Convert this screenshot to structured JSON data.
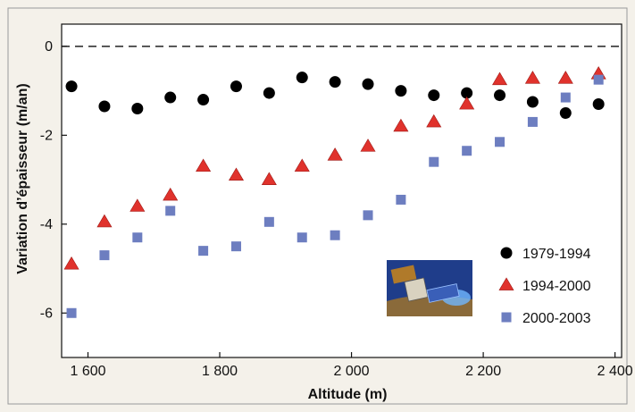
{
  "chart_data": {
    "type": "scatter",
    "xlabel": "Altitude (m)",
    "ylabel": "Variation d’épaisseur (m/an)",
    "xlim": [
      1560,
      2410
    ],
    "ylim": [
      -7,
      0.5
    ],
    "x_ticks": [
      1600,
      1800,
      2000,
      2200,
      2400
    ],
    "x_tick_labels": [
      "1 600",
      "1 800",
      "2 000",
      "2 200",
      "2 400"
    ],
    "y_ticks": [
      0,
      -2,
      -4,
      -6
    ],
    "y_tick_labels": [
      "0",
      "-2",
      "-4",
      "-6"
    ],
    "reference_line": 0,
    "grid": false,
    "legend_position": "bottom-right",
    "x": [
      1575,
      1625,
      1675,
      1725,
      1775,
      1825,
      1875,
      1925,
      1975,
      2025,
      2075,
      2125,
      2175,
      2225,
      2275,
      2325,
      2375
    ],
    "series": [
      {
        "name": "1979-1994",
        "marker": "circle",
        "color": "#000000",
        "values": [
          -0.9,
          -1.35,
          -1.4,
          -1.15,
          -1.2,
          -0.9,
          -1.05,
          -0.7,
          -0.8,
          -0.85,
          -1.0,
          -1.1,
          -1.05,
          -1.1,
          -1.25,
          -1.5,
          -1.3
        ]
      },
      {
        "name": "1994-2000",
        "marker": "triangle",
        "color": "#e0322c",
        "values": [
          -4.9,
          -3.95,
          -3.6,
          -3.35,
          -2.7,
          -2.9,
          -3.0,
          -2.7,
          -2.45,
          -2.25,
          -1.8,
          -1.7,
          -1.3,
          -0.75,
          -0.72,
          -0.72,
          -0.62
        ]
      },
      {
        "name": "2000-2003",
        "marker": "square",
        "color": "#6d7ec0",
        "values": [
          -6.0,
          -4.7,
          -4.3,
          -3.7,
          -4.6,
          -4.5,
          -3.95,
          -4.3,
          -4.25,
          -3.8,
          -3.45,
          -2.6,
          -2.35,
          -2.15,
          -1.7,
          -1.15,
          -0.75
        ]
      }
    ]
  },
  "inset": {
    "icon": "satellite-icon",
    "colors": {
      "sky": "#1f3d8a",
      "glow": "#6fb6ff",
      "panel": "#b07a2a",
      "earth": "#8a6a3a"
    }
  }
}
